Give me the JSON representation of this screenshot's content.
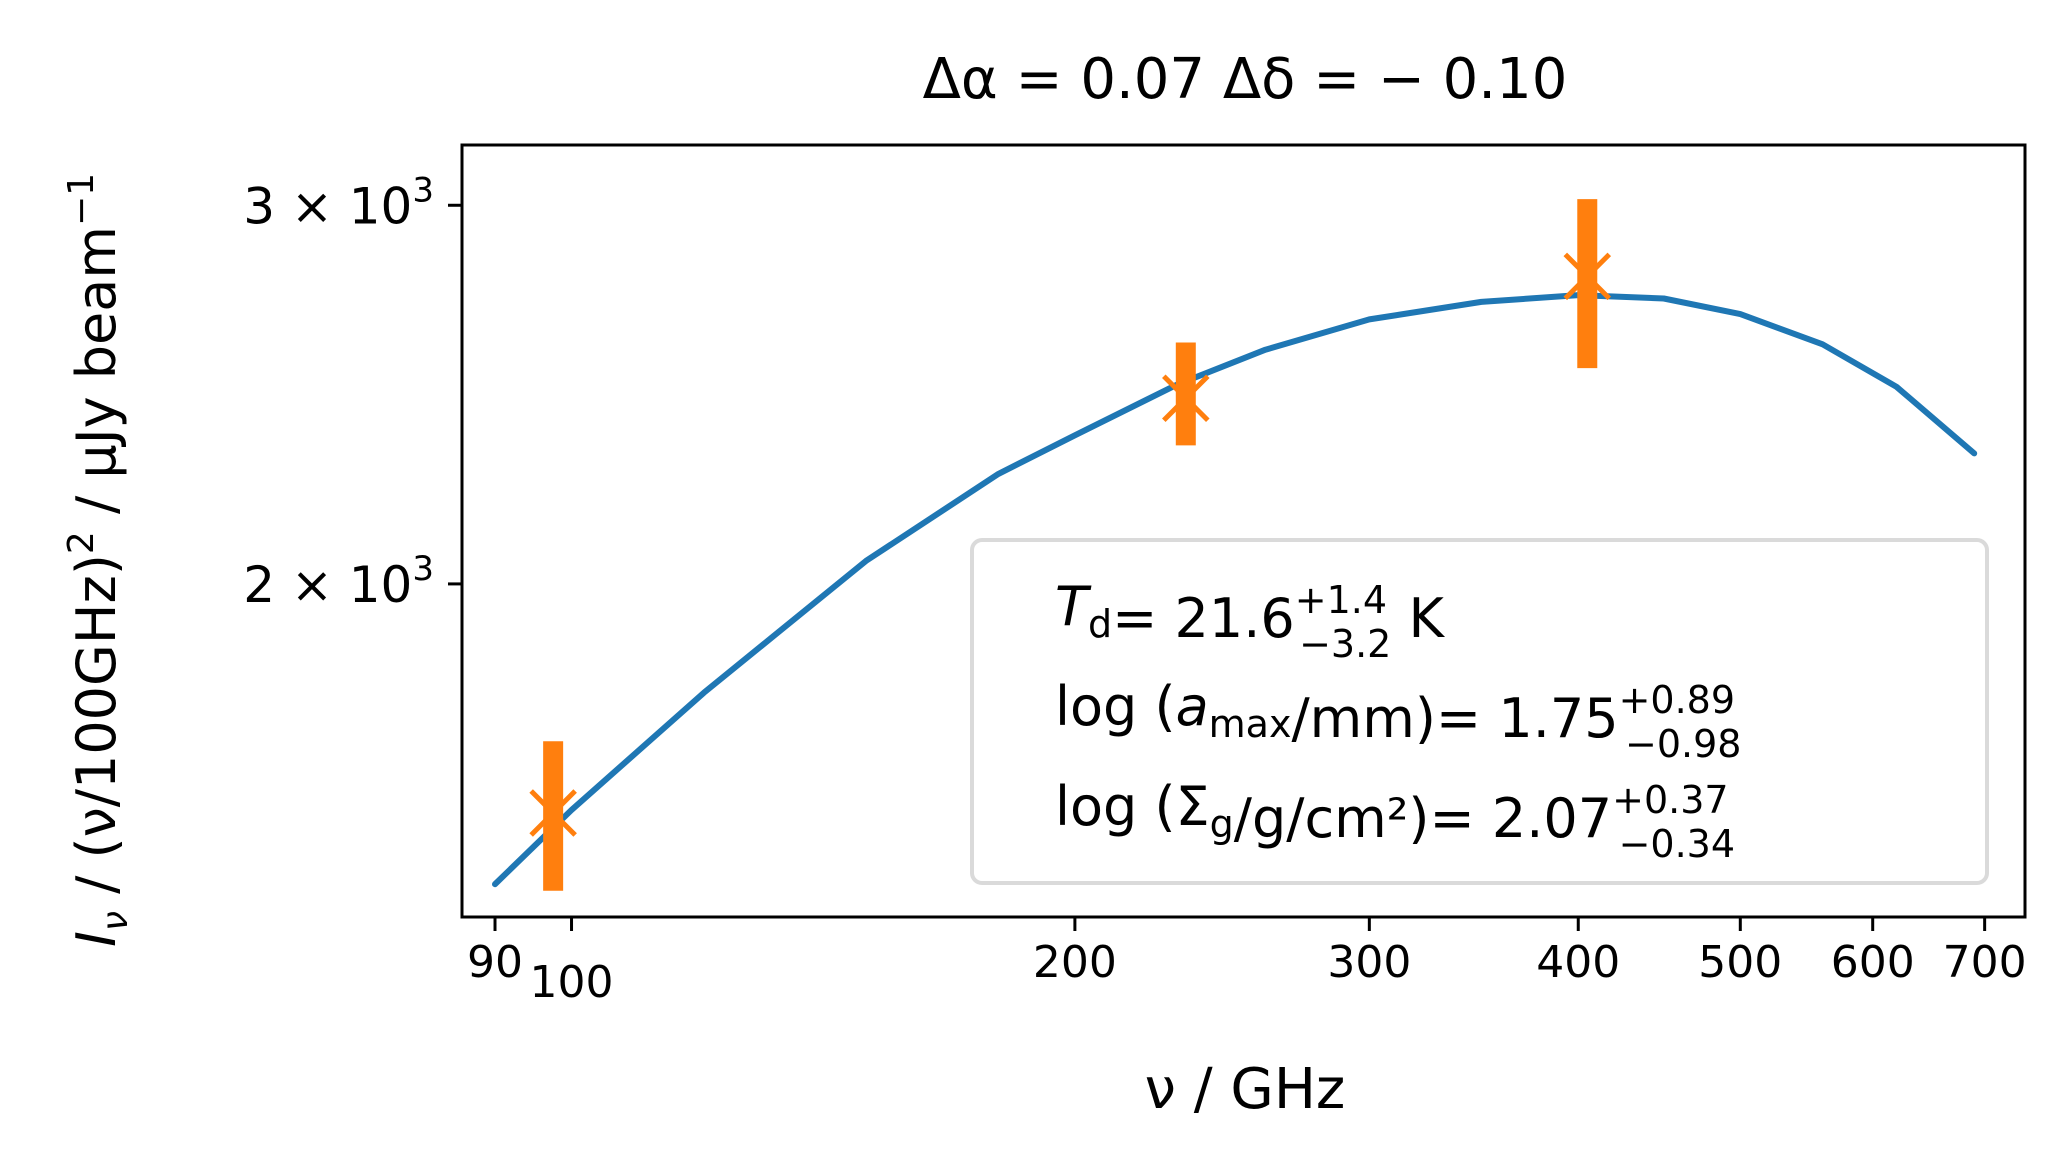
{
  "chart_data": {
    "type": "scatter",
    "title": "Δα = 0.07  Δδ = − 0.10",
    "xlabel": "ν   / GHz",
    "ylabel": "I_ν / (ν/100GHz)^2  / μJy beam^−1",
    "x_scale": "log",
    "y_scale": "log",
    "xlim": [
      86,
      740
    ],
    "ylim": [
      1400,
      3200
    ],
    "x_ticks": [
      90,
      100,
      200,
      300,
      400,
      500,
      600,
      700
    ],
    "y_ticks": [
      {
        "value": 2000,
        "label": "2 × 10^3"
      },
      {
        "value": 3000,
        "label": "3 × 10^3"
      }
    ],
    "series": [
      {
        "kind": "points",
        "color": "#ff7f0e",
        "marker": "x",
        "points": [
          {
            "x": 97.5,
            "y": 1565,
            "err_low": 1440,
            "err_high": 1690
          },
          {
            "x": 233,
            "y": 2440,
            "err_low": 2320,
            "err_high": 2590
          },
          {
            "x": 405,
            "y": 2780,
            "err_low": 2520,
            "err_high": 3020
          }
        ]
      },
      {
        "kind": "model",
        "color": "#1f77b4",
        "line": [
          {
            "x": 90,
            "y": 1450
          },
          {
            "x": 100,
            "y": 1570
          },
          {
            "x": 120,
            "y": 1780
          },
          {
            "x": 150,
            "y": 2050
          },
          {
            "x": 180,
            "y": 2250
          },
          {
            "x": 200,
            "y": 2345
          },
          {
            "x": 230,
            "y": 2475
          },
          {
            "x": 260,
            "y": 2570
          },
          {
            "x": 300,
            "y": 2655
          },
          {
            "x": 350,
            "y": 2705
          },
          {
            "x": 400,
            "y": 2725
          },
          {
            "x": 450,
            "y": 2715
          },
          {
            "x": 500,
            "y": 2670
          },
          {
            "x": 560,
            "y": 2585
          },
          {
            "x": 620,
            "y": 2470
          },
          {
            "x": 690,
            "y": 2300
          }
        ]
      }
    ],
    "legend": {
      "placement": "lower-right",
      "entries": [
        {
          "lhs_var": "T",
          "lhs_sub": "d",
          "value": "21.6",
          "plus": "+1.4",
          "minus": "−3.2",
          "unit": "K"
        },
        {
          "lhs_pre": "log (",
          "lhs_var": "a",
          "lhs_sub": "max",
          "lhs_post": "/mm)",
          "value": "1.75",
          "plus": "+0.89",
          "minus": "−0.98",
          "unit": ""
        },
        {
          "lhs_pre": "log (Σ",
          "lhs_var": "",
          "lhs_sub": "g",
          "lhs_post": "/g/cm²)",
          "value": "2.07",
          "plus": "+0.37",
          "minus": "−0.34",
          "unit": ""
        }
      ]
    }
  }
}
